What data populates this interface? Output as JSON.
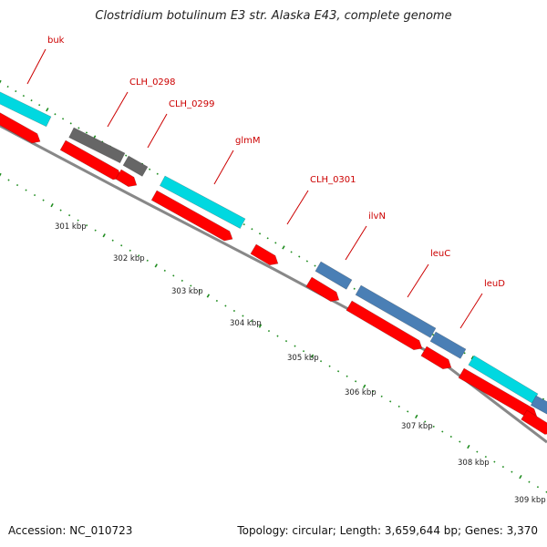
{
  "title": "Clostridium botulinum E3 str. Alaska E43, complete genome",
  "footer": {
    "accession": "Accession: NC_010723",
    "topology": "Topology: circular; Length: 3,659,644 bp; Genes: 3,370"
  },
  "colors": {
    "cds": "#ff0000",
    "teal_feature": "#00d8e0",
    "grey_feature": "#666666",
    "blue_feature": "#4a7fb5",
    "ticks": "#1e8c1e",
    "backbone": "#888888",
    "labels": "#cc0000"
  },
  "genes": [
    "buk",
    "CLH_0298",
    "CLH_0299",
    "glmM",
    "CLH_0301",
    "ilvN",
    "leuC",
    "leuD"
  ],
  "kbp_labels": [
    "301 kbp",
    "302 kbp",
    "303 kbp",
    "304 kbp",
    "305 kbp",
    "306 kbp",
    "307 kbp",
    "308 kbp",
    "309 kbp"
  ]
}
